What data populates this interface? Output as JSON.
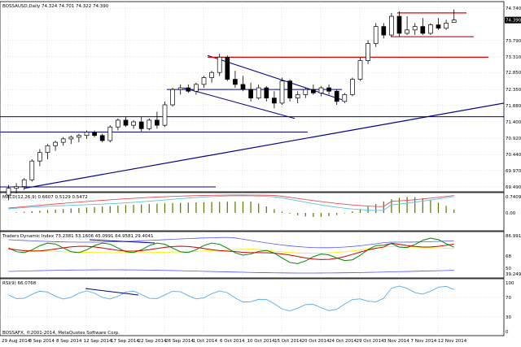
{
  "window": {
    "title": "BOSSAUSD,Daily  74.324 74.701 74.322 74.390",
    "copyright": "BOSSAFX, ©2001-2014, MetaQuotes Software Corp."
  },
  "colors": {
    "background": "#ffffff",
    "grid": "#c8c8c8",
    "bull_candle": "#ffffff",
    "bear_candle": "#000000",
    "trendline": "#00008b",
    "resistance": "#e00000",
    "macd_signal": "#e05050",
    "macd_main": "#60c0e0",
    "macd_hist": "#557700",
    "tdi_upper": "#5555ff",
    "tdi_green": "#008800",
    "tdi_red": "#cc0000",
    "tdi_yellow": "#ffee00",
    "rsi": "#55aaee",
    "price_tag": "#000000"
  },
  "chart_data": [
    {
      "type": "candlestick",
      "title": "BOSSAUSD,Daily",
      "ohlc_header": "74.324 74.701 74.322 74.390",
      "current_price": "74.390",
      "x_tick_labels": [
        "29 Aug 2014",
        "3 Sep 2014",
        "8 Sep 2014",
        "12 Sep 2014",
        "17 Sep 2014",
        "22 Sep 2014",
        "26 Sep 2014",
        "1 Oct 2014",
        "6 Oct 2014",
        "10 Oct 2014",
        "15 Oct 2014",
        "20 Oct 2014",
        "24 Oct 2014",
        "29 Oct 2014",
        "3 Nov 2014",
        "7 Nov 2014",
        "12 Nov 2014"
      ],
      "y_tick_labels": [
        "74.740",
        "73.790",
        "73.310",
        "72.850",
        "72.350",
        "71.880",
        "71.400",
        "70.920",
        "70.440",
        "69.970",
        "69.490"
      ],
      "ylim": [
        69.49,
        74.74
      ],
      "candles": [
        [
          69.25,
          69.55,
          69.1,
          69.45
        ],
        [
          69.45,
          69.6,
          69.3,
          69.5
        ],
        [
          69.5,
          69.75,
          69.4,
          69.7
        ],
        [
          69.7,
          70.3,
          69.65,
          70.25
        ],
        [
          70.25,
          70.6,
          70.1,
          70.5
        ],
        [
          70.5,
          70.75,
          70.3,
          70.7
        ],
        [
          70.7,
          70.85,
          70.55,
          70.8
        ],
        [
          70.8,
          70.95,
          70.7,
          70.9
        ],
        [
          70.9,
          71.0,
          70.75,
          70.95
        ],
        [
          70.95,
          71.05,
          70.8,
          71.0
        ],
        [
          71.0,
          71.15,
          70.9,
          71.1
        ],
        [
          71.1,
          71.15,
          70.95,
          71.0
        ],
        [
          71.0,
          71.05,
          70.8,
          70.85
        ],
        [
          70.85,
          71.3,
          70.8,
          71.25
        ],
        [
          71.25,
          71.5,
          71.15,
          71.45
        ],
        [
          71.45,
          71.55,
          71.25,
          71.3
        ],
        [
          71.3,
          71.45,
          71.2,
          71.4
        ],
        [
          71.4,
          71.55,
          71.1,
          71.2
        ],
        [
          71.2,
          71.5,
          71.15,
          71.45
        ],
        [
          71.45,
          71.7,
          71.2,
          71.3
        ],
        [
          71.3,
          72.0,
          71.25,
          71.9
        ],
        [
          71.9,
          72.4,
          71.85,
          72.35
        ],
        [
          72.35,
          72.5,
          72.2,
          72.4
        ],
        [
          72.4,
          72.5,
          72.25,
          72.3
        ],
        [
          72.3,
          72.55,
          72.2,
          72.5
        ],
        [
          72.5,
          72.75,
          72.4,
          72.7
        ],
        [
          72.7,
          72.9,
          72.55,
          72.85
        ],
        [
          72.85,
          73.4,
          72.75,
          73.3
        ],
        [
          73.3,
          73.35,
          72.6,
          72.65
        ],
        [
          72.65,
          72.9,
          72.4,
          72.5
        ],
        [
          72.5,
          72.75,
          72.3,
          72.35
        ],
        [
          72.35,
          72.55,
          72.0,
          72.1
        ],
        [
          72.1,
          72.5,
          72.05,
          72.4
        ],
        [
          72.4,
          72.45,
          72.0,
          72.1
        ],
        [
          72.1,
          72.3,
          71.8,
          71.95
        ],
        [
          71.95,
          72.7,
          71.9,
          72.6
        ],
        [
          72.6,
          72.65,
          72.0,
          72.1
        ],
        [
          72.1,
          72.3,
          71.95,
          72.2
        ],
        [
          72.2,
          72.4,
          72.1,
          72.35
        ],
        [
          72.35,
          72.5,
          72.2,
          72.25
        ],
        [
          72.25,
          72.45,
          72.15,
          72.4
        ],
        [
          72.4,
          72.5,
          72.2,
          72.3
        ],
        [
          72.3,
          72.35,
          71.9,
          72.0
        ],
        [
          72.0,
          72.25,
          71.95,
          72.2
        ],
        [
          72.2,
          72.7,
          72.15,
          72.65
        ],
        [
          72.65,
          73.3,
          72.6,
          73.2
        ],
        [
          73.2,
          73.8,
          73.1,
          73.7
        ],
        [
          73.7,
          74.3,
          73.6,
          74.2
        ],
        [
          74.2,
          74.3,
          73.85,
          73.95
        ],
        [
          73.95,
          74.6,
          73.9,
          74.5
        ],
        [
          74.5,
          74.65,
          73.9,
          74.0
        ],
        [
          74.0,
          74.5,
          73.95,
          74.1
        ],
        [
          74.1,
          74.3,
          73.95,
          74.2
        ],
        [
          74.2,
          74.45,
          73.95,
          74.0
        ],
        [
          74.0,
          74.3,
          73.95,
          74.25
        ],
        [
          74.25,
          74.45,
          74.1,
          74.15
        ],
        [
          74.15,
          74.4,
          74.1,
          74.3
        ],
        [
          74.32,
          74.7,
          74.32,
          74.39
        ]
      ]
    },
    {
      "type": "macd",
      "label": "MACD(12,26,9) 0.6607 0.5129 0.5472",
      "y_tick_labels": [
        "0.7409",
        "0.00"
      ]
    },
    {
      "type": "tdi",
      "label": "Traders Dynamic Index 73.2381 53.1606 45.0991 64.9581 29.4041",
      "y_tick_labels": [
        "86.991",
        "68",
        "50",
        "39.2493"
      ]
    },
    {
      "type": "rsi",
      "label": "RSI(9) 66.0768",
      "y_tick_labels": [
        "100",
        "70",
        "30",
        "0"
      ]
    }
  ]
}
